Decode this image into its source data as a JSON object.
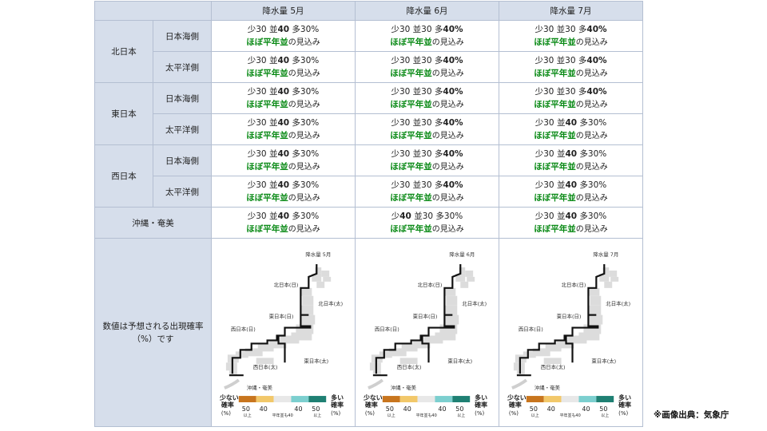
{
  "header": {
    "corner": "",
    "columns": [
      "降水量 5月",
      "降水量 6月",
      "降水量 7月"
    ]
  },
  "rows": [
    {
      "region": "北日本",
      "sub": "日本海側",
      "cells": [
        {
          "low": "少30",
          "norm": "並",
          "norm_val": "40",
          "high": "多30%",
          "emph": "norm"
        },
        {
          "low": "少30",
          "norm": "並30",
          "high": "多",
          "high_val": "40%",
          "emph": "high"
        },
        {
          "low": "少30",
          "norm": "並30",
          "high": "多",
          "high_val": "40%",
          "emph": "high"
        }
      ]
    },
    {
      "region": "北日本",
      "sub": "太平洋側",
      "cells": [
        {
          "low": "少30",
          "norm": "並",
          "norm_val": "40",
          "high": "多30%",
          "emph": "norm"
        },
        {
          "low": "少30",
          "norm": "並30",
          "high": "多",
          "high_val": "40%",
          "emph": "high"
        },
        {
          "low": "少30",
          "norm": "並30",
          "high": "多",
          "high_val": "40%",
          "emph": "high"
        }
      ]
    },
    {
      "region": "東日本",
      "sub": "日本海側",
      "cells": [
        {
          "low": "少30",
          "norm": "並",
          "norm_val": "40",
          "high": "多30%",
          "emph": "norm"
        },
        {
          "low": "少30",
          "norm": "並30",
          "high": "多",
          "high_val": "40%",
          "emph": "high"
        },
        {
          "low": "少30",
          "norm": "並30",
          "high": "多",
          "high_val": "40%",
          "emph": "high"
        }
      ]
    },
    {
      "region": "東日本",
      "sub": "太平洋側",
      "cells": [
        {
          "low": "少30",
          "norm": "並",
          "norm_val": "40",
          "high": "多30%",
          "emph": "norm"
        },
        {
          "low": "少30",
          "norm": "並30",
          "high": "多",
          "high_val": "40%",
          "emph": "high"
        },
        {
          "low": "少30",
          "norm": "並",
          "norm_val": "40",
          "high": "多30%",
          "emph": "norm"
        }
      ]
    },
    {
      "region": "西日本",
      "sub": "日本海側",
      "cells": [
        {
          "low": "少30",
          "norm": "並",
          "norm_val": "40",
          "high": "多30%",
          "emph": "norm"
        },
        {
          "low": "少30",
          "norm": "並30",
          "high": "多",
          "high_val": "40%",
          "emph": "high"
        },
        {
          "low": "少30",
          "norm": "並",
          "norm_val": "40",
          "high": "多30%",
          "emph": "norm"
        }
      ]
    },
    {
      "region": "西日本",
      "sub": "太平洋側",
      "cells": [
        {
          "low": "少30",
          "norm": "並",
          "norm_val": "40",
          "high": "多30%",
          "emph": "norm"
        },
        {
          "low": "少30",
          "norm": "並30",
          "high": "多",
          "high_val": "40%",
          "emph": "high"
        },
        {
          "low": "少30",
          "norm": "並",
          "norm_val": "40",
          "high": "多30%",
          "emph": "norm"
        }
      ]
    },
    {
      "region": "沖縄・奄美",
      "sub": "",
      "cells": [
        {
          "low": "少30",
          "norm": "並",
          "norm_val": "40",
          "high": "多30%",
          "emph": "norm"
        },
        {
          "low": "少",
          "low_val": "40",
          "norm": "並30",
          "high": "多30%",
          "emph": "low"
        },
        {
          "low": "少30",
          "norm": "並",
          "norm_val": "40",
          "high": "多30%",
          "emph": "norm"
        }
      ]
    }
  ],
  "summary": {
    "main": "ほぼ平年並",
    "rest": "の見込み"
  },
  "note": {
    "line1": "数値は予想される出現確率",
    "line2": "（%）です"
  },
  "maps": [
    {
      "title": "降水量 5月"
    },
    {
      "title": "降水量 6月"
    },
    {
      "title": "降水量 7月"
    }
  ],
  "map_labels": {
    "kita_nichi": "北日本(日)",
    "kita_tai": "北日本(太)",
    "higashi_nichi": "東日本(日)",
    "higashi_tai": "東日本(太)",
    "nishi_nichi": "西日本(日)",
    "nishi_tai": "西日本(太)",
    "okinawa": "沖縄・奄美"
  },
  "legend": {
    "low_title1": "少ない",
    "low_title2": "確率",
    "low_unit": "(%)",
    "high_title1": "多い",
    "high_title2": "確率",
    "high_unit": "(%)",
    "v50a": "50",
    "v40a": "40",
    "ijo": "以上",
    "v40b": "40",
    "v50b": "50",
    "ijo2": "以上",
    "normal": "平年並も40"
  },
  "colors": {
    "header_bg": "#d6deeb",
    "border": "#b4bfd2",
    "summary_green": "#0a8a16",
    "low50": "#c8751e",
    "low40": "#f2c86a",
    "normal": "#e8e8e8",
    "high40": "#7ccfcf",
    "high50": "#1f8073"
  },
  "source": "※画像出典：気象庁"
}
